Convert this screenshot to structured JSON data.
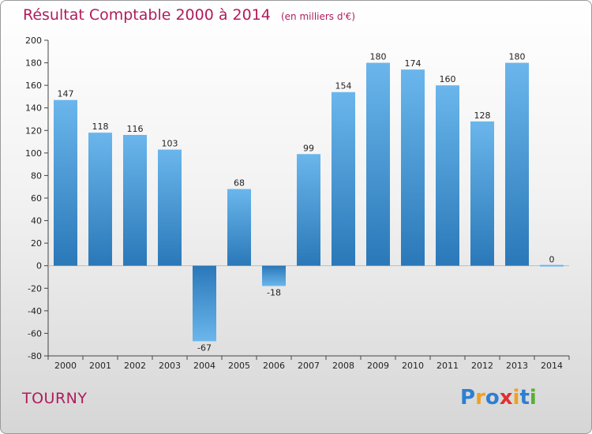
{
  "header": {
    "title": "Résultat Comptable 2000 à 2014",
    "unit": "(en milliers d'€)"
  },
  "commune": "TOURNY",
  "logo": {
    "letters": [
      "P",
      "r",
      "o",
      "x",
      "i",
      "t",
      "i"
    ],
    "colors": [
      "#2e7fd0",
      "#f0a020",
      "#2e7fd0",
      "#e03030",
      "#f0a020",
      "#2e7fd0",
      "#58b030"
    ]
  },
  "colors": {
    "bar_top": "#6ab6ec",
    "bar_bottom": "#2a78b8",
    "title": "#b01c5c"
  },
  "chart_data": {
    "type": "bar",
    "title": "Résultat Comptable 2000 à 2014",
    "xlabel": "",
    "ylabel": "",
    "categories": [
      "2000",
      "2001",
      "2002",
      "2003",
      "2004",
      "2005",
      "2006",
      "2007",
      "2008",
      "2009",
      "2010",
      "2011",
      "2012",
      "2013",
      "2014"
    ],
    "values": [
      147,
      118,
      116,
      103,
      -67,
      68,
      -18,
      99,
      154,
      180,
      174,
      160,
      128,
      180,
      0
    ],
    "data_labels": [
      "147",
      "118",
      "116",
      "103",
      "-67",
      "68",
      "-18",
      "99",
      "154",
      "180",
      "174",
      "160",
      "128",
      "180",
      "0"
    ],
    "ylim": [
      -80,
      200
    ],
    "yticks": [
      -80,
      -60,
      -40,
      -20,
      0,
      20,
      40,
      60,
      80,
      100,
      120,
      140,
      160,
      180,
      200
    ],
    "ytick_labels": [
      "-80",
      "-60",
      "-40",
      "-20",
      "0",
      "20",
      "40",
      "60",
      "80",
      "100",
      "120",
      "140",
      "160",
      "180",
      "200"
    ],
    "grid": false,
    "legend": "none"
  }
}
